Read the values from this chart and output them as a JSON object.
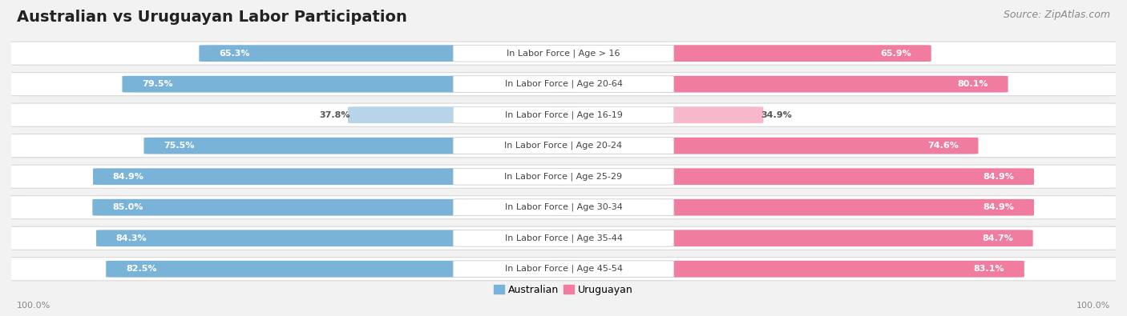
{
  "title": "Australian vs Uruguayan Labor Participation",
  "source": "Source: ZipAtlas.com",
  "categories": [
    "In Labor Force | Age > 16",
    "In Labor Force | Age 20-64",
    "In Labor Force | Age 16-19",
    "In Labor Force | Age 20-24",
    "In Labor Force | Age 25-29",
    "In Labor Force | Age 30-34",
    "In Labor Force | Age 35-44",
    "In Labor Force | Age 45-54"
  ],
  "australian_values": [
    65.3,
    79.5,
    37.8,
    75.5,
    84.9,
    85.0,
    84.3,
    82.5
  ],
  "uruguayan_values": [
    65.9,
    80.1,
    34.9,
    74.6,
    84.9,
    84.9,
    84.7,
    83.1
  ],
  "australian_color": "#7ab3d8",
  "australian_light_color": "#b8d4e8",
  "uruguayan_color": "#f07ca0",
  "uruguayan_light_color": "#f7b8cc",
  "bg_color": "#f2f2f2",
  "row_bg": "#ffffff",
  "row_border": "#d8d8d8",
  "max_value": 100.0,
  "title_fontsize": 14,
  "source_fontsize": 9,
  "label_fontsize": 8,
  "value_fontsize": 8,
  "legend_fontsize": 9,
  "axis_label_fontsize": 8,
  "light_threshold": 50
}
